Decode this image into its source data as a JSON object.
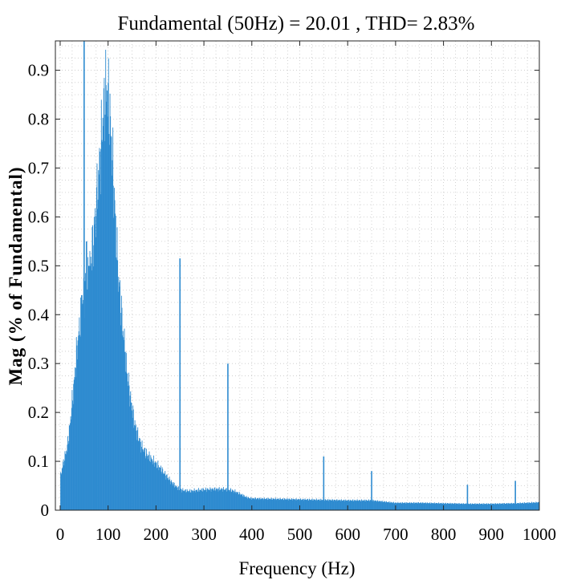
{
  "chart_data": {
    "type": "bar",
    "title": "Fundamental (50Hz) = 20.01 , THD= 2.83%",
    "xlabel": "Frequency (Hz)",
    "ylabel": "Mag (% of Fundamental)",
    "xlim": [
      -10,
      1000
    ],
    "ylim": [
      0,
      0.96
    ],
    "xticks": [
      0,
      100,
      200,
      300,
      400,
      500,
      600,
      700,
      800,
      900,
      1000
    ],
    "yticks": [
      0,
      0.1,
      0.2,
      0.3,
      0.4,
      0.5,
      0.6,
      0.7,
      0.8,
      0.9
    ],
    "grid": "dotted",
    "bar_color": "#2e8bd0",
    "envelope_points": [
      [
        0,
        0.0
      ],
      [
        1,
        0.07
      ],
      [
        5,
        0.09
      ],
      [
        10,
        0.11
      ],
      [
        15,
        0.13
      ],
      [
        20,
        0.17
      ],
      [
        25,
        0.22
      ],
      [
        30,
        0.27
      ],
      [
        35,
        0.33
      ],
      [
        40,
        0.37
      ],
      [
        45,
        0.42
      ],
      [
        50,
        0.44
      ],
      [
        55,
        0.46
      ],
      [
        60,
        0.48
      ],
      [
        65,
        0.52
      ],
      [
        70,
        0.56
      ],
      [
        75,
        0.62
      ],
      [
        80,
        0.68
      ],
      [
        85,
        0.74
      ],
      [
        88,
        0.79
      ],
      [
        92,
        0.83
      ],
      [
        95,
        0.86
      ],
      [
        98,
        0.86
      ],
      [
        101,
        0.84
      ],
      [
        104,
        0.8
      ],
      [
        108,
        0.74
      ],
      [
        112,
        0.66
      ],
      [
        116,
        0.58
      ],
      [
        120,
        0.5
      ],
      [
        125,
        0.44
      ],
      [
        130,
        0.38
      ],
      [
        135,
        0.33
      ],
      [
        140,
        0.28
      ],
      [
        145,
        0.24
      ],
      [
        150,
        0.21
      ],
      [
        155,
        0.18
      ],
      [
        160,
        0.16
      ],
      [
        165,
        0.145
      ],
      [
        170,
        0.13
      ],
      [
        180,
        0.115
      ],
      [
        190,
        0.105
      ],
      [
        200,
        0.095
      ],
      [
        210,
        0.085
      ],
      [
        220,
        0.072
      ],
      [
        230,
        0.06
      ],
      [
        240,
        0.05
      ],
      [
        250,
        0.042
      ],
      [
        260,
        0.04
      ],
      [
        270,
        0.039
      ],
      [
        280,
        0.04
      ],
      [
        300,
        0.042
      ],
      [
        320,
        0.043
      ],
      [
        340,
        0.043
      ],
      [
        350,
        0.042
      ],
      [
        360,
        0.04
      ],
      [
        370,
        0.036
      ],
      [
        380,
        0.031
      ],
      [
        390,
        0.026
      ],
      [
        400,
        0.024
      ],
      [
        450,
        0.023
      ],
      [
        500,
        0.022
      ],
      [
        550,
        0.021
      ],
      [
        600,
        0.02
      ],
      [
        650,
        0.02
      ],
      [
        700,
        0.015
      ],
      [
        750,
        0.015
      ],
      [
        800,
        0.014
      ],
      [
        850,
        0.013
      ],
      [
        900,
        0.013
      ],
      [
        950,
        0.014
      ],
      [
        1000,
        0.016
      ]
    ],
    "spikes": [
      {
        "x": 45,
        "y": 0.44
      },
      {
        "x": 50,
        "y": 0.96
      },
      {
        "x": 55,
        "y": 0.55
      },
      {
        "x": 60,
        "y": 0.5
      },
      {
        "x": 250,
        "y": 0.515
      },
      {
        "x": 350,
        "y": 0.3
      },
      {
        "x": 550,
        "y": 0.11
      },
      {
        "x": 650,
        "y": 0.08
      },
      {
        "x": 850,
        "y": 0.052
      },
      {
        "x": 950,
        "y": 0.06
      }
    ]
  }
}
